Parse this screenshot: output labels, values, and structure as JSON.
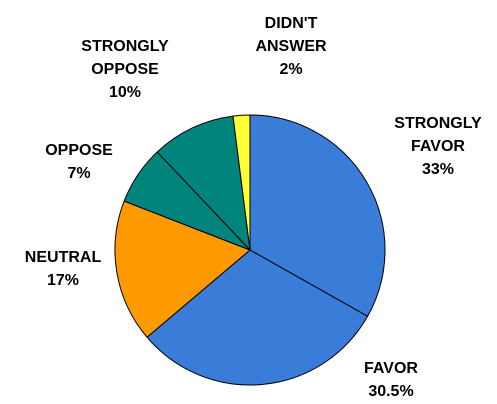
{
  "chart_data": {
    "type": "pie",
    "slices": [
      {
        "label": [
          "STRONGLY",
          "FAVOR"
        ],
        "value_label": "33%",
        "value": 33,
        "color": "#3A7DD8"
      },
      {
        "label": [
          "FAVOR"
        ],
        "value_label": "30.5%",
        "value": 30.5,
        "color": "#3A7DD8"
      },
      {
        "label": [
          "NEUTRAL"
        ],
        "value_label": "17%",
        "value": 17,
        "color": "#FF9900"
      },
      {
        "label": [
          "OPPOSE"
        ],
        "value_label": "7%",
        "value": 7,
        "color": "#00847C"
      },
      {
        "label": [
          "STRONGLY",
          "OPPOSE"
        ],
        "value_label": "10%",
        "value": 10,
        "color": "#00847C"
      },
      {
        "label": [
          "DIDN'T",
          "ANSWER"
        ],
        "value_label": "2%",
        "value": 2,
        "color": "#FFFF33"
      }
    ],
    "start_angle_deg": 0,
    "direction": "clockwise",
    "legend": "none"
  }
}
